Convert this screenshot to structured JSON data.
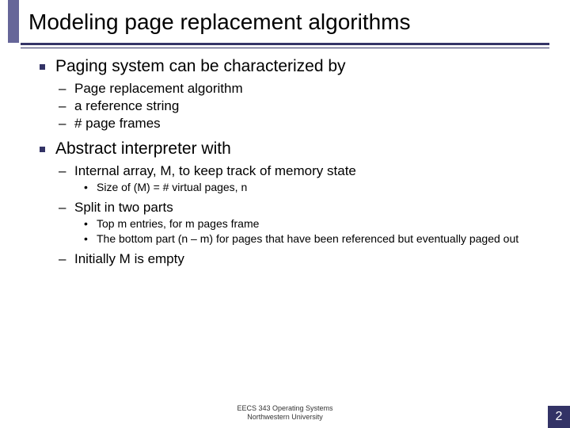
{
  "title": "Modeling page replacement algorithms",
  "colors": {
    "accent": "#333366",
    "accent_light": "#666699",
    "text": "#000000",
    "background": "#ffffff"
  },
  "bullets": {
    "b1": "Paging system can be characterized by",
    "b1_1": "Page replacement algorithm",
    "b1_2": "a reference string",
    "b1_3": "# page frames",
    "b2": "Abstract interpreter with",
    "b2_1": "Internal array, M, to keep track of memory state",
    "b2_1_1": "Size of (M) = # virtual pages, n",
    "b2_2": "Split in two parts",
    "b2_2_1": "Top m entries, for m pages frame",
    "b2_2_2": "The bottom part (n – m) for pages that have been referenced but eventually paged out",
    "b2_3": "Initially M is empty"
  },
  "footer": {
    "line1": "EECS 343 Operating Systems",
    "line2": "Northwestern University"
  },
  "page_number": "2"
}
